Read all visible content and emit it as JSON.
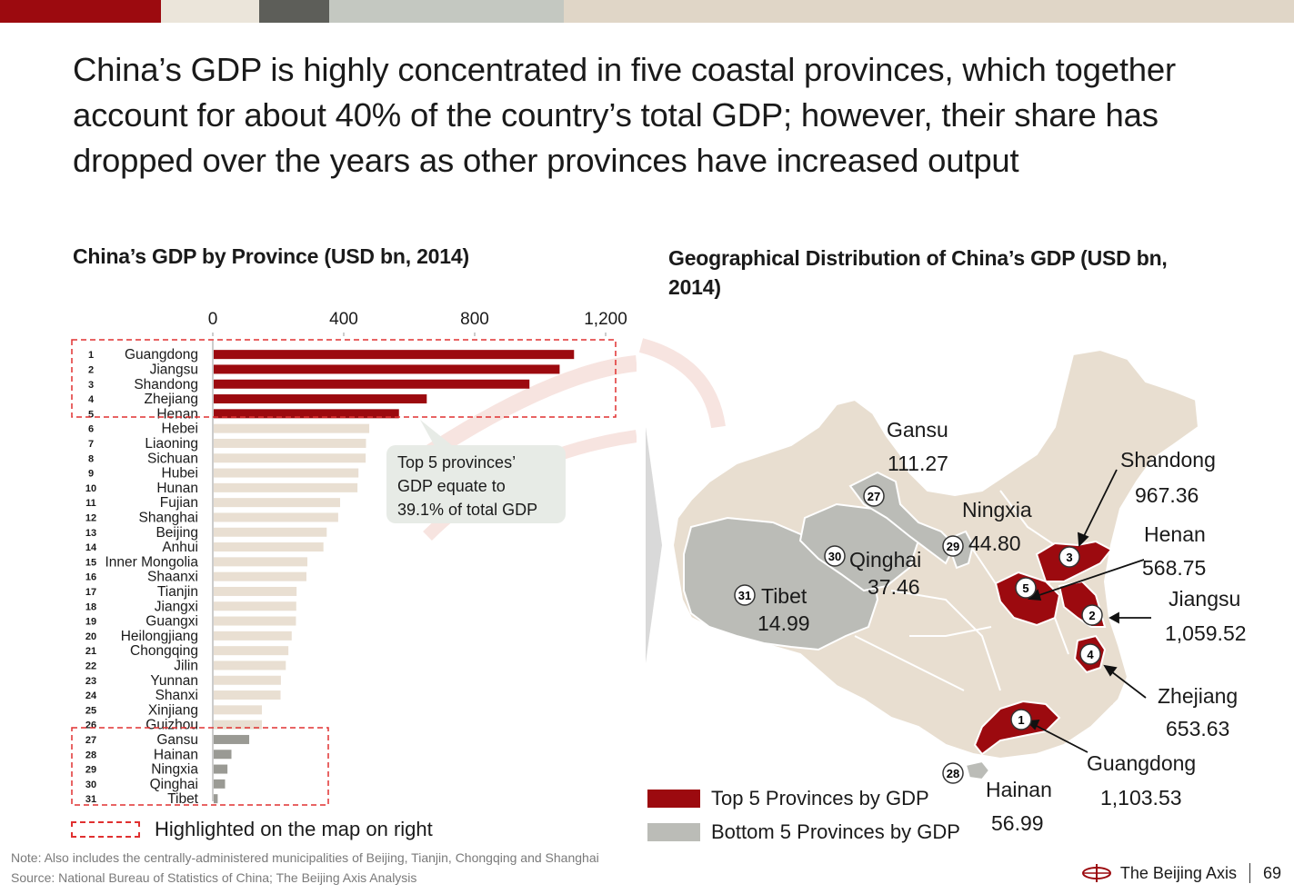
{
  "colors": {
    "top5": "#9c0a0f",
    "bottom5": "#9a9a94",
    "others": "#e9dfd2",
    "dashed": "#e03030",
    "map_land": "#e9dfd2",
    "map_bottom": "#bbbcb7"
  },
  "slide": {
    "title": "China’s GDP is highly concentrated in five coastal provinces, which together account for about 40% of the country’s total GDP; however, their share has dropped over the years as other provinces have increased output",
    "page_number": "69",
    "brand": "The Beijing Axis",
    "brand_icon": "beijing-axis-logo-icon",
    "note": "Note: Also includes the centrally-administered municipalities of Beijing, Tianjin, Chongqing and Shanghai",
    "source": "Source: National Bureau of Statistics of China; The Beijing Axis Analysis"
  },
  "left": {
    "subtitle": "China’s GDP by Province (USD bn, 2014)",
    "callout": "Top 5 provinces’ GDP equate to 39.1% of total GDP",
    "legend_dashed": "Highlighted on the map on right"
  },
  "right": {
    "subtitle": "Geographical Distribution of China’s GDP (USD bn, 2014)",
    "legend_top": "Top 5 Provinces by GDP",
    "legend_bottom": "Bottom 5 Provinces by GDP",
    "labels": {
      "gansu_name": "Gansu",
      "gansu_value": "111.27",
      "gansu_rank": "27",
      "ningxia_name": "Ningxia",
      "ningxia_value": "44.80",
      "ningxia_rank": "29",
      "qinghai_name": "Qinghai",
      "qinghai_value": "37.46",
      "qinghai_rank": "30",
      "tibet_name": "Tibet",
      "tibet_value": "14.99",
      "tibet_rank": "31",
      "hainan_name": "Hainan",
      "hainan_value": "56.99",
      "hainan_rank": "28",
      "shandong_name": "Shandong",
      "shandong_value": "967.36",
      "shandong_rank": "3",
      "henan_name": "Henan",
      "henan_value": "568.75",
      "henan_rank": "5",
      "jiangsu_name": "Jiangsu",
      "jiangsu_value": "1,059.52",
      "jiangsu_rank": "2",
      "zhejiang_name": "Zhejiang",
      "zhejiang_value": "653.63",
      "zhejiang_rank": "4",
      "guangdong_name": "Guangdong",
      "guangdong_value": "1,103.53",
      "guangdong_rank": "1"
    }
  },
  "chart_data": {
    "type": "bar",
    "orientation": "horizontal",
    "title": "China’s GDP by Province (USD bn, 2014)",
    "xlim": [
      0,
      1200
    ],
    "ticks": [
      0,
      400,
      800,
      1200
    ],
    "tick_labels": [
      "0",
      "400",
      "800",
      "1,200"
    ],
    "ranks": [
      "1",
      "2",
      "3",
      "4",
      "5",
      "6",
      "7",
      "8",
      "9",
      "10",
      "11",
      "12",
      "13",
      "14",
      "15",
      "16",
      "17",
      "18",
      "19",
      "20",
      "21",
      "22",
      "23",
      "24",
      "25",
      "26",
      "27",
      "28",
      "29",
      "30",
      "31"
    ],
    "categories": [
      "Guangdong",
      "Jiangsu",
      "Shandong",
      "Zhejiang",
      "Henan",
      "Hebei",
      "Liaoning",
      "Sichuan",
      "Hubei",
      "Hunan",
      "Fujian",
      "Shanghai",
      "Beijing",
      "Anhui",
      "Inner Mongolia",
      "Shaanxi",
      "Tianjin",
      "Jiangxi",
      "Guangxi",
      "Heilongjiang",
      "Chongqing",
      "Jilin",
      "Yunnan",
      "Shanxi",
      "Xinjiang",
      "Guizhou",
      "Gansu",
      "Hainan",
      "Ningxia",
      "Qinghai",
      "Tibet"
    ],
    "values": [
      1103.53,
      1059.52,
      967.36,
      653.63,
      568.75,
      478,
      468,
      467,
      445,
      442,
      389,
      383,
      348,
      338,
      289,
      286,
      256,
      255,
      254,
      241,
      231,
      223,
      208,
      207,
      150,
      150,
      111.27,
      56.99,
      44.8,
      37.46,
      14.99
    ],
    "groups": [
      "top5",
      "top5",
      "top5",
      "top5",
      "top5",
      "other",
      "other",
      "other",
      "other",
      "other",
      "other",
      "other",
      "other",
      "other",
      "other",
      "other",
      "other",
      "other",
      "other",
      "other",
      "other",
      "other",
      "other",
      "other",
      "other",
      "other",
      "bottom5",
      "bottom5",
      "bottom5",
      "bottom5",
      "bottom5"
    ]
  }
}
